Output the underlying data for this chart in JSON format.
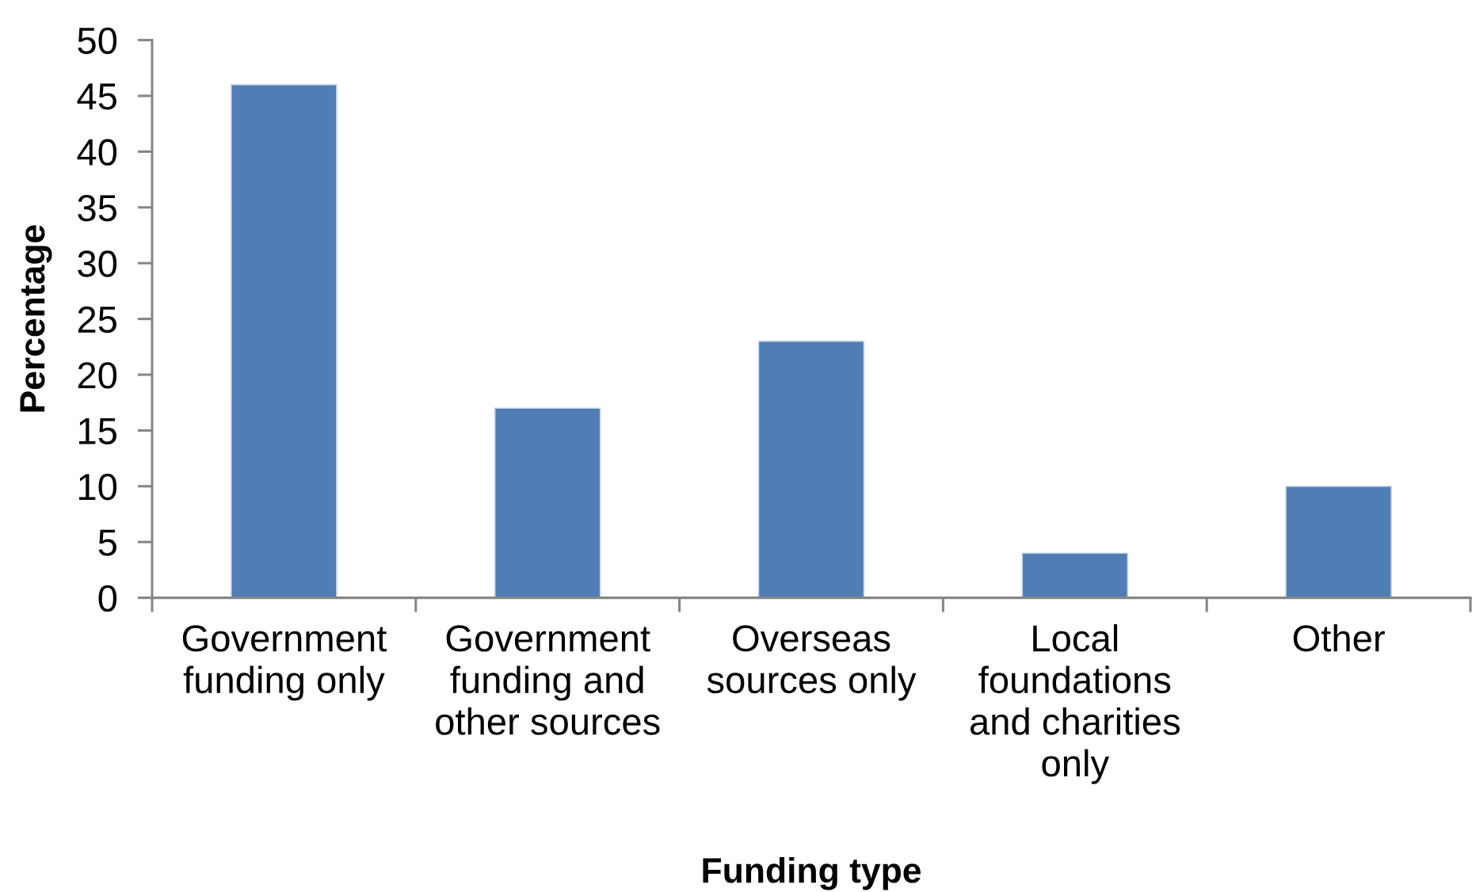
{
  "chart_data": {
    "type": "bar",
    "xlabel": "Funding type",
    "ylabel": "Percentage",
    "categories": [
      "Government\nfunding only",
      "Government\nfunding and\nother sources",
      "Overseas\nsources only",
      "Local\nfoundations\nand charities\nonly",
      "Other"
    ],
    "values": [
      46,
      17,
      23,
      4,
      10
    ],
    "color": "#4f7db4",
    "ylim": [
      0,
      50
    ],
    "yticks": [
      0,
      5,
      10,
      15,
      20,
      25,
      30,
      35,
      40,
      45,
      50
    ]
  }
}
